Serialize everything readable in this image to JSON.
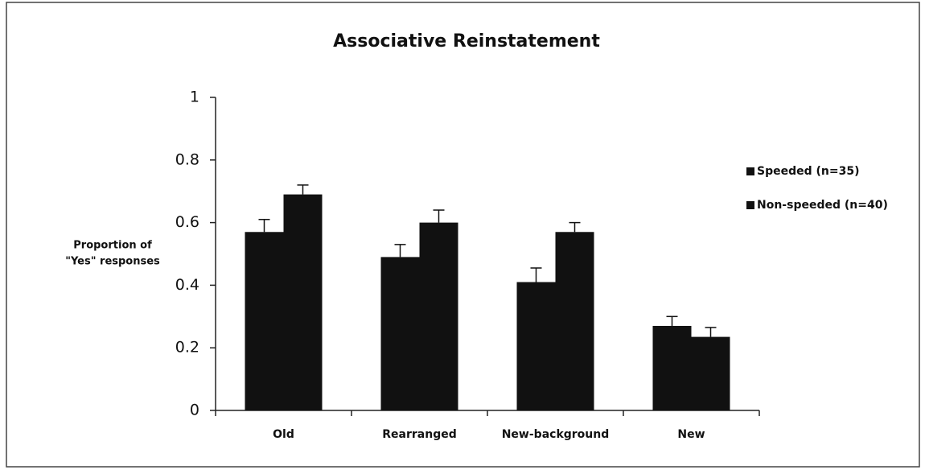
{
  "chart_data": {
    "type": "bar",
    "title": "Associative Reinstatement",
    "ylabel": [
      "Proportion of",
      "\"Yes\" responses"
    ],
    "categories": [
      "Old",
      "Rearranged",
      "New-background",
      "New"
    ],
    "series": [
      {
        "name": "Speeded (n=35)",
        "color": "#111111",
        "values": [
          0.57,
          0.49,
          0.41,
          0.27
        ],
        "errors": [
          0.04,
          0.04,
          0.045,
          0.03
        ]
      },
      {
        "name": "Non-speeded (n=40)",
        "color": "#111111",
        "values": [
          0.69,
          0.6,
          0.57,
          0.235
        ],
        "errors": [
          0.03,
          0.04,
          0.03,
          0.03
        ]
      }
    ],
    "ylim": [
      0,
      1
    ],
    "yticks": [
      0,
      0.2,
      0.4,
      0.6,
      0.8,
      1
    ],
    "grid": false,
    "legend": "right"
  }
}
